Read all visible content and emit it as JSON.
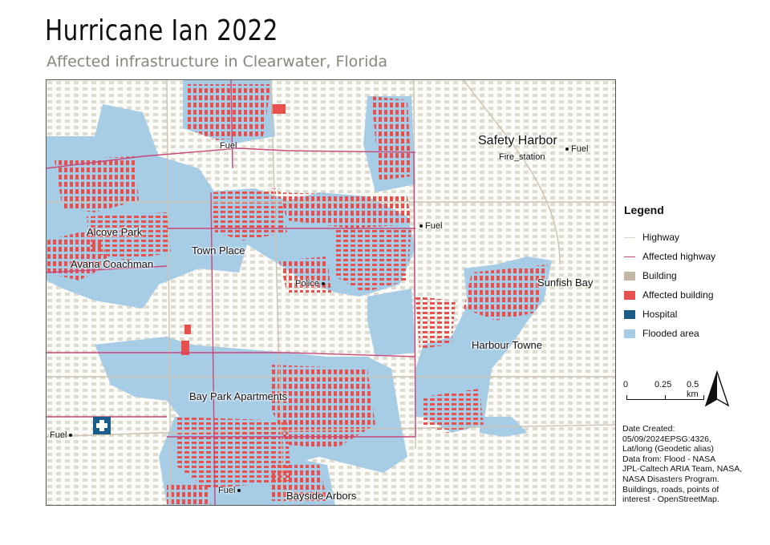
{
  "title": "Hurricane Ian 2022",
  "subtitle": "Affected infrastructure in Clearwater, Florida",
  "colors": {
    "highway": "#d9d3c8",
    "affected_highway": "#c8487a",
    "building": "#c2b8a6",
    "affected_building": "#e8504e",
    "hospital": "#1a5c8a",
    "flooded_area": "#a7cde6"
  },
  "map": {
    "places": {
      "safety_harbor": "Safety Harbor",
      "alcove_park": "Alcove Park",
      "avana_coachman": "Avana Coachman",
      "town_place": "Town Place",
      "sunfish_bay": "Sunfish Bay",
      "harbour_towne": "Harbour Towne",
      "bay_park_apartments": "Bay Park Apartments",
      "bayside_arbors": "Bayside Arbors"
    },
    "pois": {
      "fuel_north": "Fuel",
      "fuel_safety": "Fuel",
      "fire_station": "Fire_station",
      "fuel_center": "Fuel",
      "police": "Police",
      "fuel_west": "Fuel",
      "fuel_south": "Fuel"
    },
    "hospital_icon": "hospital-cross-icon"
  },
  "legend": {
    "title": "Legend",
    "items": [
      {
        "label": "Highway",
        "kind": "line",
        "color": "#d9d3c8"
      },
      {
        "label": "Affected highway",
        "kind": "line",
        "color": "#c8487a"
      },
      {
        "label": "Building",
        "kind": "box",
        "color": "#c2b8a6"
      },
      {
        "label": "Affected building",
        "kind": "box",
        "color": "#e8504e"
      },
      {
        "label": "Hospital",
        "kind": "box",
        "color": "#1a5c8a"
      },
      {
        "label": "Flooded area",
        "kind": "box",
        "color": "#a7cde6"
      }
    ]
  },
  "scale": {
    "labels": [
      "0",
      "0.25",
      "0.5 km"
    ]
  },
  "north_arrow_icon": "north-arrow-icon",
  "credits": "Date Created:\n05/09/2024EPSG:4326,\n Lat/long (Geodetic alias)\nData from: Flood - NASA\nJPL-Caltech ARIA Team, NASA,\nNASA Disasters Program.\nBuildings, roads, points of\ninterest - OpenStreetMap."
}
